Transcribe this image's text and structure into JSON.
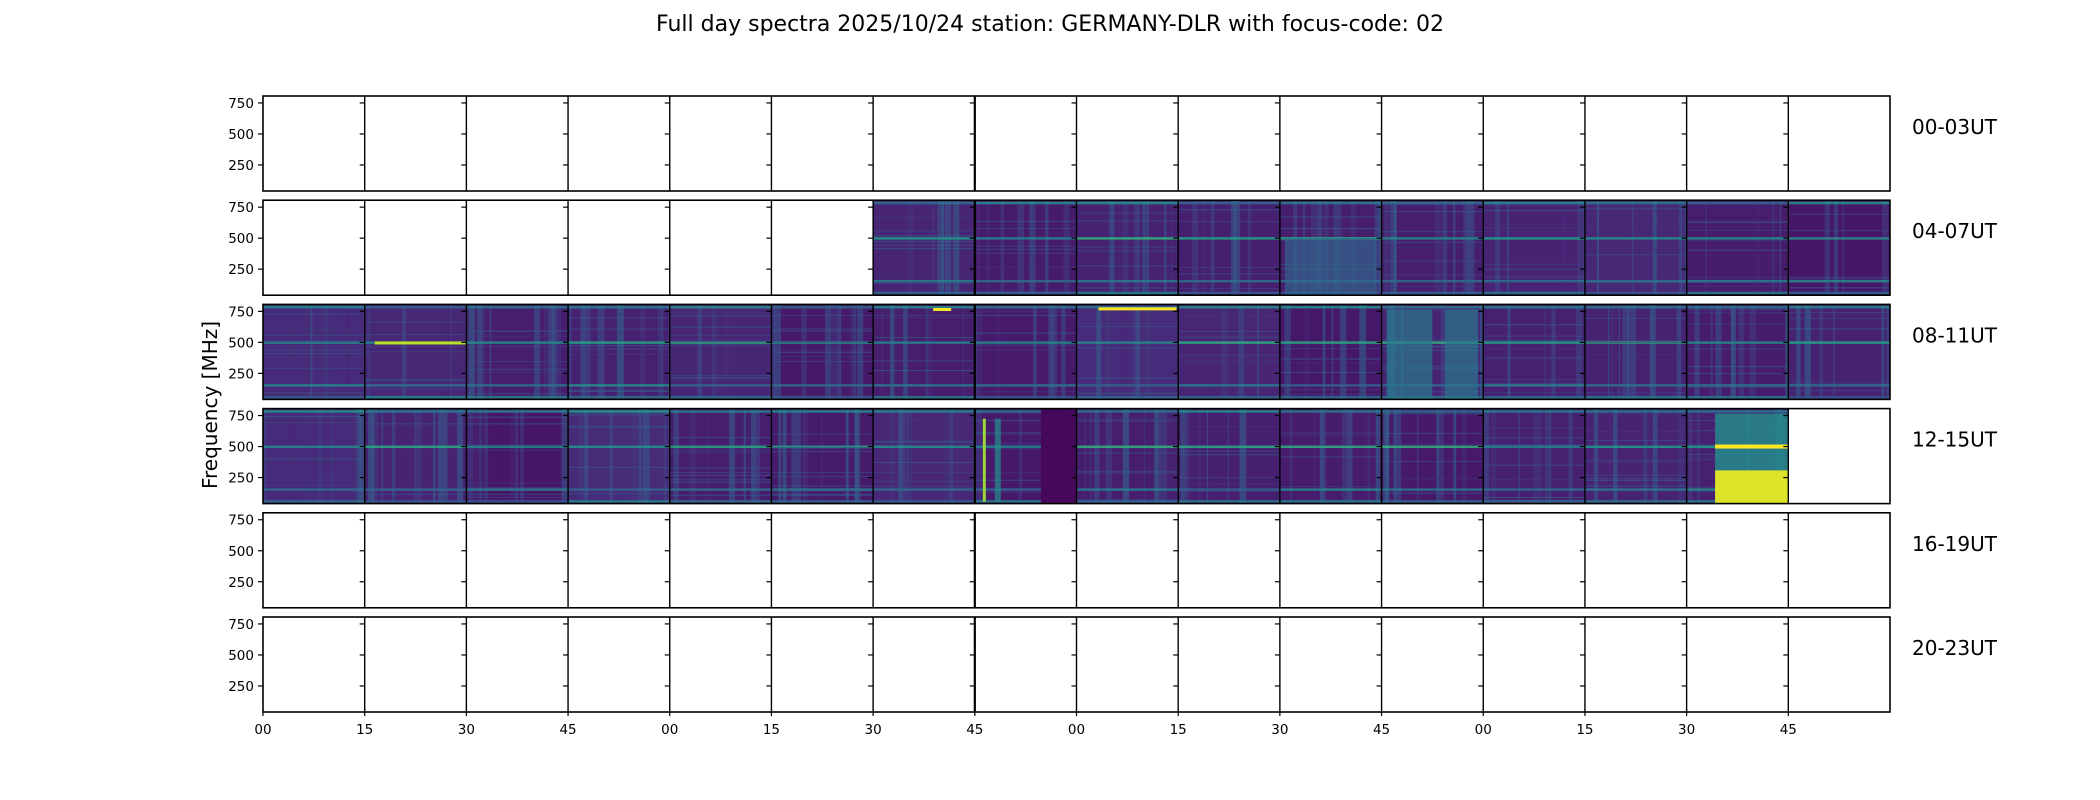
{
  "title": "Full day spectra 2025/10/24 station: GERMANY-DLR with focus-code: 02",
  "chart_data": {
    "type": "heatmap",
    "title": "Full day spectra 2025/10/24 station: GERMANY-DLR with focus-code: 02",
    "xlabel": "",
    "ylabel": "Frequency [MHz]",
    "ylim": [
      40,
      806
    ],
    "yticks": [
      "750",
      "500",
      "250"
    ],
    "ytick_values": [
      750,
      500,
      250
    ],
    "xticks": [
      "00",
      "15",
      "30",
      "45",
      "00",
      "15",
      "30",
      "45",
      "00",
      "15",
      "30",
      "45",
      "00",
      "15",
      "30",
      "45"
    ],
    "minutes_per_cell": 15,
    "cells_per_row": 16,
    "colormap": "viridis",
    "colors": {
      "low": "#440154",
      "mid": "#21918c",
      "high": "#fde725"
    },
    "rows": [
      {
        "label": "00-03UT",
        "data_cells": []
      },
      {
        "label": "04-07UT",
        "data_cells": [
          6,
          7,
          8,
          9,
          10,
          11,
          12,
          13,
          14,
          15
        ]
      },
      {
        "label": "08-11UT",
        "data_cells": [
          0,
          1,
          2,
          3,
          4,
          5,
          6,
          7,
          8,
          9,
          10,
          11,
          12,
          13,
          14,
          15
        ]
      },
      {
        "label": "12-15UT",
        "data_cells": [
          0,
          1,
          2,
          3,
          4,
          5,
          6,
          7,
          8,
          9,
          10,
          11,
          12,
          13,
          14
        ]
      },
      {
        "label": "16-19UT",
        "data_cells": []
      },
      {
        "label": "20-23UT",
        "data_cells": []
      }
    ]
  }
}
